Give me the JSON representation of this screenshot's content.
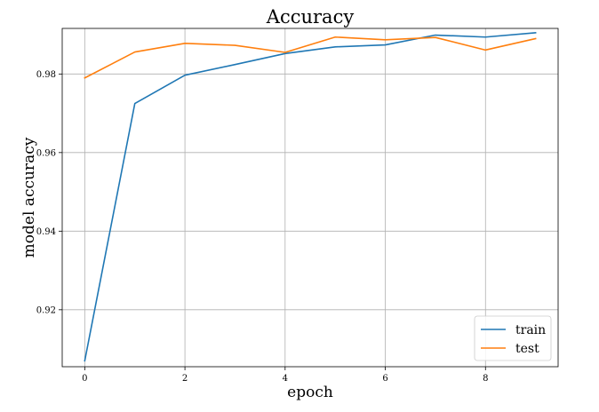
{
  "chart_data": {
    "type": "line",
    "title": "Accuracy",
    "xlabel": "epoch",
    "ylabel": "model accuracy",
    "x": [
      0,
      1,
      2,
      3,
      4,
      5,
      6,
      7,
      8,
      9
    ],
    "series": [
      {
        "name": "train",
        "color": "#1f77b4",
        "values": [
          0.907,
          0.9725,
          0.9797,
          0.9824,
          0.9852,
          0.9869,
          0.9874,
          0.9899,
          0.9894,
          0.9905
        ]
      },
      {
        "name": "test",
        "color": "#ff7f0e",
        "values": [
          0.979,
          0.9856,
          0.9878,
          0.9873,
          0.9855,
          0.9894,
          0.9887,
          0.9893,
          0.9861,
          0.989
        ]
      }
    ],
    "xlim": [
      -0.45,
      9.45
    ],
    "ylim": [
      0.9055,
      0.9916
    ],
    "xticks": [
      0,
      2,
      4,
      6,
      8
    ],
    "xtick_labels": [
      "0",
      "2",
      "4",
      "6",
      "8"
    ],
    "yticks": [
      0.92,
      0.94,
      0.96,
      0.98
    ],
    "ytick_labels": [
      "0.92",
      "0.94",
      "0.96",
      "0.98"
    ],
    "grid": true,
    "legend_position": "bottom-right"
  }
}
